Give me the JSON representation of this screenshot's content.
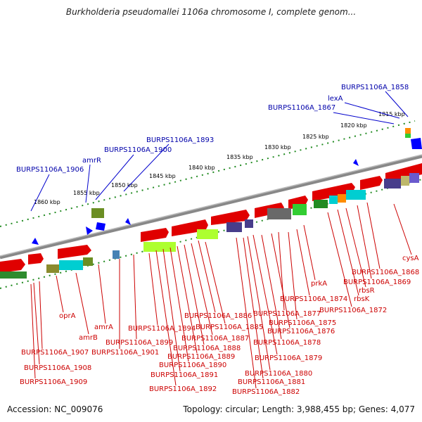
{
  "title": "Burkholderia pseudomallei 1106a chromosome I, complete genom...",
  "footer": {
    "accession": "Accession: NC_009076",
    "summary": "Topology: circular; Length: 3,988,455 bp; Genes: 4,077"
  },
  "kbp_ticks": [
    "1815 kbp",
    "1820 kbp",
    "1825 kbp",
    "1830 kbp",
    "1835 kbp",
    "1840 kbp",
    "1845 kbp",
    "1850 kbp",
    "1855 kbp",
    "1860 kbp"
  ],
  "top_labels": [
    "BURPS1106A_1858",
    "lexA",
    "BURPS1106A_1867",
    "BURPS1106A_1893",
    "BURPS1106A_1900",
    "amrR",
    "BURPS1106A_1906"
  ],
  "bottom_labels": [
    "cysA",
    "BURPS1106A_1868",
    "BURPS1106A_1869",
    "rbsR",
    "rbsK",
    "BURPS1106A_1872",
    "prkA",
    "BURPS1106A_1874",
    "BURPS1106A_1875",
    "BURPS1106A_1877",
    "BURPS1106A_1876",
    "BURPS1106A_1878",
    "BURPS1106A_1879",
    "BURPS1106A_1880",
    "BURPS1106A_1881",
    "BURPS1106A_1882",
    "BURPS1106A_1886",
    "BURPS1106A_1885",
    "BURPS1106A_1887",
    "BURPS1106A_1888",
    "BURPS1106A_1889",
    "BURPS1106A_1890",
    "BURPS1106A_1891",
    "BURPS1106A_1892",
    "BURPS1106A_1894",
    "BURPS1106A_1899",
    "BURPS1106A_1901",
    "amrA",
    "amrB",
    "oprA",
    "BURPS1106A_1907",
    "BURPS1106A_1908",
    "BURPS1106A_1909"
  ],
  "colors": {
    "backbone": "#888888",
    "gene_forward": "#ff0000",
    "gene_reverse_marker": "#0000ff",
    "label_bottom": "#cc0000",
    "label_top": "#0000aa",
    "tick": "#228b22"
  }
}
